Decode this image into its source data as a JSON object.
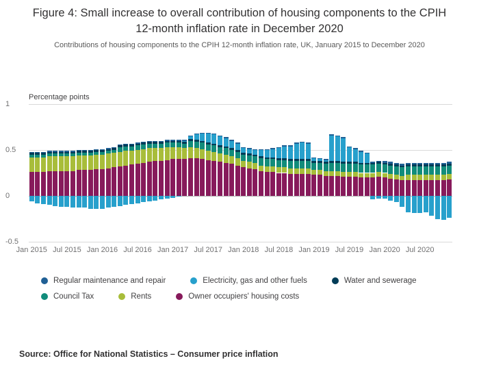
{
  "title": "Figure 4: Small increase to overall contribution of housing components to the CPIH 12-month inflation rate in December 2020",
  "subtitle": "Contributions of housing components to the CPIH 12-month inflation rate, UK, January 2015 to December 2020",
  "axis_unit_label": "Percentage points",
  "source": "Source: Office for National Statistics – Consumer price inflation",
  "legend": {
    "rows": [
      [
        {
          "label": "Regular maintenance and repair",
          "color": "#206095"
        },
        {
          "label": "Electricity, gas and other fuels",
          "color": "#27A0CC"
        },
        {
          "label": "Water and sewerage",
          "color": "#003C57"
        }
      ],
      [
        {
          "label": "Council Tax",
          "color": "#118C7B"
        },
        {
          "label": "Rents",
          "color": "#A8BD3A"
        },
        {
          "label": "Owner occupiers' housing costs",
          "color": "#871A5B"
        }
      ]
    ]
  },
  "chart_data": {
    "type": "bar",
    "stacked": true,
    "title": "Contributions of housing components to the CPIH 12-month inflation rate, UK, January 2015 to December 2020",
    "ylabel": "Percentage points",
    "ylim": [
      -0.5,
      1
    ],
    "grid": true,
    "legend_position": "bottom",
    "yticks": [
      {
        "value": 1,
        "label": "1"
      },
      {
        "value": 0.5,
        "label": "0.5"
      },
      {
        "value": 0,
        "label": "0"
      },
      {
        "value": -0.5,
        "label": "-0.5"
      }
    ],
    "x_period": {
      "start": "Jan 2015",
      "end": "Dec 2020",
      "n_months": 72
    },
    "xticks": [
      {
        "index": 0,
        "label": "Jan 2015"
      },
      {
        "index": 6,
        "label": "Jul 2015"
      },
      {
        "index": 12,
        "label": "Jan 2016"
      },
      {
        "index": 18,
        "label": "Jul 2016"
      },
      {
        "index": 24,
        "label": "Jan 2017"
      },
      {
        "index": 30,
        "label": "Jul 2017"
      },
      {
        "index": 36,
        "label": "Jan 2018"
      },
      {
        "index": 42,
        "label": "Jul 2018"
      },
      {
        "index": 48,
        "label": "Jan 2019"
      },
      {
        "index": 54,
        "label": "Jul 2019"
      },
      {
        "index": 60,
        "label": "Jan 2020"
      },
      {
        "index": 66,
        "label": "Jul 2020"
      }
    ],
    "series": [
      {
        "name": "Owner occupiers' housing costs",
        "color": "#871A5B",
        "values": [
          0.26,
          0.26,
          0.26,
          0.27,
          0.27,
          0.27,
          0.27,
          0.27,
          0.28,
          0.28,
          0.28,
          0.29,
          0.29,
          0.3,
          0.31,
          0.32,
          0.33,
          0.34,
          0.35,
          0.36,
          0.37,
          0.38,
          0.38,
          0.39,
          0.4,
          0.4,
          0.4,
          0.41,
          0.41,
          0.4,
          0.39,
          0.38,
          0.37,
          0.36,
          0.35,
          0.33,
          0.31,
          0.3,
          0.29,
          0.27,
          0.26,
          0.26,
          0.25,
          0.25,
          0.24,
          0.24,
          0.24,
          0.24,
          0.23,
          0.23,
          0.22,
          0.22,
          0.22,
          0.21,
          0.21,
          0.21,
          0.2,
          0.2,
          0.2,
          0.21,
          0.2,
          0.19,
          0.18,
          0.17,
          0.17,
          0.17,
          0.17,
          0.17,
          0.17,
          0.17,
          0.17,
          0.18
        ]
      },
      {
        "name": "Rents",
        "color": "#A8BD3A",
        "values": [
          0.16,
          0.16,
          0.16,
          0.16,
          0.16,
          0.16,
          0.16,
          0.16,
          0.16,
          0.16,
          0.16,
          0.16,
          0.16,
          0.16,
          0.16,
          0.16,
          0.16,
          0.15,
          0.15,
          0.15,
          0.15,
          0.14,
          0.14,
          0.14,
          0.13,
          0.13,
          0.12,
          0.12,
          0.11,
          0.11,
          0.1,
          0.1,
          0.09,
          0.09,
          0.08,
          0.08,
          0.07,
          0.07,
          0.07,
          0.06,
          0.06,
          0.06,
          0.06,
          0.06,
          0.06,
          0.06,
          0.06,
          0.06,
          0.05,
          0.05,
          0.05,
          0.05,
          0.05,
          0.05,
          0.05,
          0.05,
          0.05,
          0.05,
          0.05,
          0.05,
          0.05,
          0.05,
          0.05,
          0.05,
          0.06,
          0.06,
          0.06,
          0.06,
          0.06,
          0.06,
          0.06,
          0.06
        ]
      },
      {
        "name": "Council Tax",
        "color": "#118C7B",
        "values": [
          0.03,
          0.03,
          0.03,
          0.03,
          0.03,
          0.03,
          0.03,
          0.03,
          0.03,
          0.03,
          0.03,
          0.03,
          0.03,
          0.03,
          0.03,
          0.05,
          0.05,
          0.05,
          0.05,
          0.05,
          0.05,
          0.05,
          0.05,
          0.05,
          0.05,
          0.05,
          0.05,
          0.07,
          0.07,
          0.07,
          0.07,
          0.07,
          0.07,
          0.07,
          0.07,
          0.07,
          0.07,
          0.07,
          0.07,
          0.08,
          0.08,
          0.08,
          0.08,
          0.08,
          0.08,
          0.08,
          0.08,
          0.08,
          0.08,
          0.08,
          0.08,
          0.09,
          0.09,
          0.09,
          0.09,
          0.09,
          0.09,
          0.09,
          0.09,
          0.09,
          0.09,
          0.09,
          0.09,
          0.09,
          0.09,
          0.09,
          0.09,
          0.09,
          0.09,
          0.09,
          0.09,
          0.09
        ]
      },
      {
        "name": "Water and sewerage",
        "color": "#003C57",
        "values": [
          0.02,
          0.02,
          0.02,
          0.02,
          0.02,
          0.02,
          0.02,
          0.02,
          0.02,
          0.02,
          0.02,
          0.02,
          0.02,
          0.02,
          0.02,
          0.02,
          0.02,
          0.02,
          0.02,
          0.02,
          0.02,
          0.02,
          0.02,
          0.02,
          0.02,
          0.02,
          0.02,
          0.02,
          0.02,
          0.02,
          0.02,
          0.02,
          0.02,
          0.02,
          0.02,
          0.02,
          0.02,
          0.02,
          0.02,
          0.02,
          0.02,
          0.02,
          0.02,
          0.02,
          0.02,
          0.02,
          0.02,
          0.02,
          0.02,
          0.02,
          0.02,
          0.02,
          0.02,
          0.02,
          0.02,
          0.02,
          0.02,
          0.02,
          0.02,
          0.02,
          0.02,
          0.02,
          0.02,
          0.02,
          0.02,
          0.02,
          0.02,
          0.02,
          0.02,
          0.02,
          0.02,
          0.02
        ]
      },
      {
        "name": "Electricity, gas and other fuels",
        "color": "#27A0CC",
        "values": [
          -0.06,
          -0.08,
          -0.09,
          -0.1,
          -0.11,
          -0.12,
          -0.12,
          -0.13,
          -0.13,
          -0.13,
          -0.14,
          -0.14,
          -0.14,
          -0.13,
          -0.12,
          -0.11,
          -0.1,
          -0.09,
          -0.08,
          -0.07,
          -0.06,
          -0.05,
          -0.04,
          -0.03,
          -0.02,
          -0.01,
          0.01,
          0.03,
          0.06,
          0.08,
          0.1,
          0.1,
          0.1,
          0.09,
          0.08,
          0.07,
          0.05,
          0.05,
          0.05,
          0.07,
          0.08,
          0.09,
          0.11,
          0.13,
          0.14,
          0.17,
          0.18,
          0.17,
          0.03,
          0.02,
          0.02,
          0.28,
          0.27,
          0.26,
          0.16,
          0.14,
          0.12,
          0.1,
          -0.04,
          -0.03,
          -0.03,
          -0.05,
          -0.07,
          -0.12,
          -0.18,
          -0.19,
          -0.19,
          -0.18,
          -0.22,
          -0.25,
          -0.26,
          -0.24
        ]
      },
      {
        "name": "Regular maintenance and repair",
        "color": "#206095",
        "values": [
          0.01,
          0.01,
          0.01,
          0.01,
          0.01,
          0.01,
          0.01,
          0.01,
          0.01,
          0.01,
          0.01,
          0.01,
          0.01,
          0.01,
          0.01,
          0.01,
          0.01,
          0.01,
          0.01,
          0.01,
          0.01,
          0.01,
          0.01,
          0.01,
          0.01,
          0.01,
          0.01,
          0.01,
          0.01,
          0.01,
          0.01,
          0.01,
          0.01,
          0.01,
          0.01,
          0.01,
          0.01,
          0.01,
          0.01,
          0.01,
          0.01,
          0.01,
          0.01,
          0.01,
          0.01,
          0.01,
          0.01,
          0.01,
          0.01,
          0.01,
          0.01,
          0.01,
          0.01,
          0.01,
          0.01,
          0.01,
          0.01,
          0.01,
          0.01,
          0.01,
          0.02,
          0.02,
          0.02,
          0.02,
          0.02,
          0.02,
          0.02,
          0.02,
          0.02,
          0.02,
          0.02,
          0.02
        ]
      }
    ]
  }
}
